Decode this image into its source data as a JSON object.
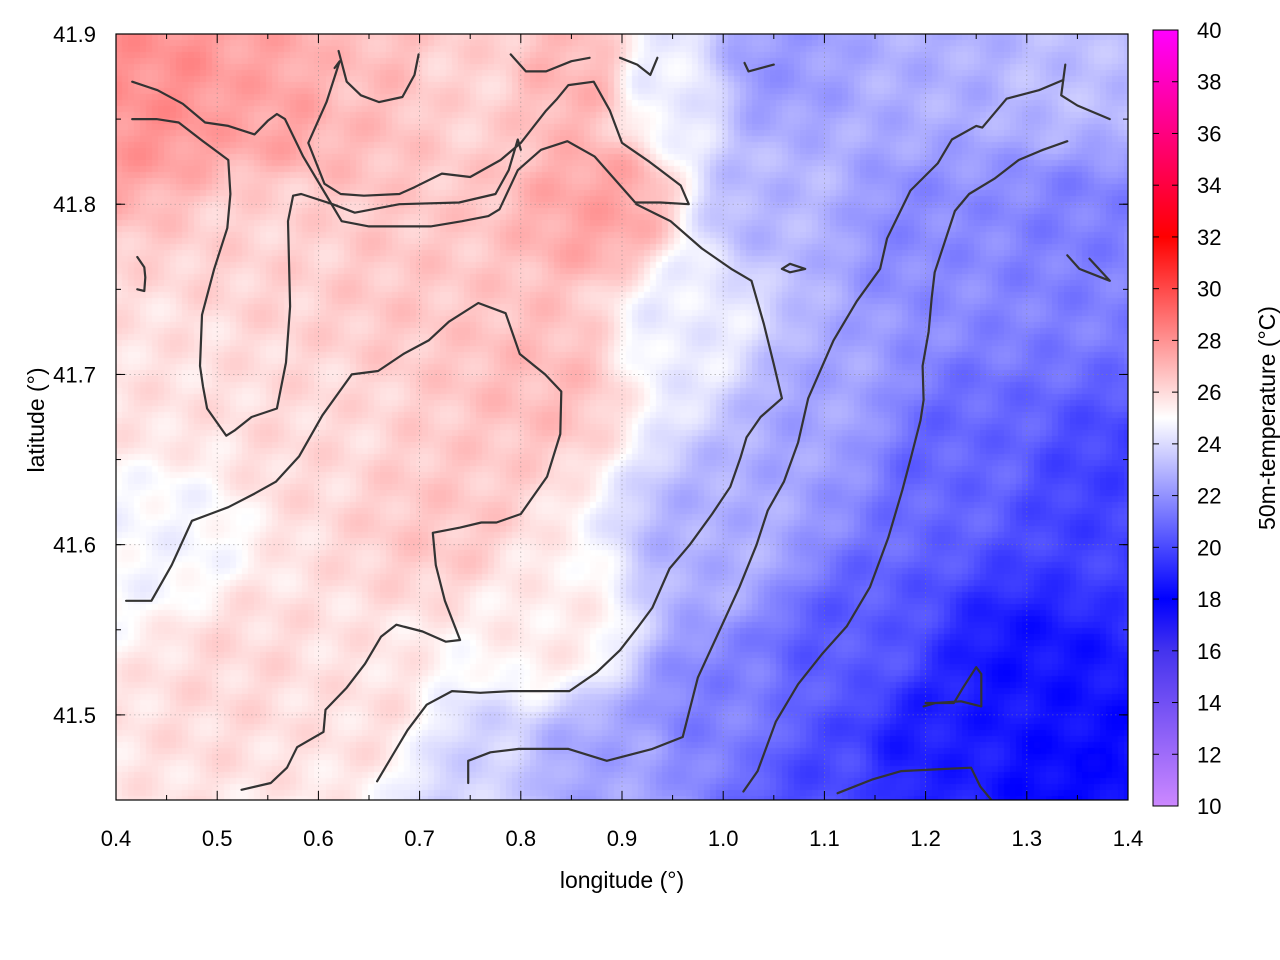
{
  "chart_data": {
    "type": "heatmap",
    "title": "",
    "xlabel": "longitude (°)",
    "ylabel": "latitude (°)",
    "colorbar_label": "50m-temperature (°C)",
    "xlim": [
      0.4,
      1.4
    ],
    "ylim": [
      41.45,
      41.9
    ],
    "x_ticks": [
      0.4,
      0.5,
      0.6,
      0.7,
      0.8,
      0.9,
      1.0,
      1.1,
      1.2,
      1.3,
      1.4
    ],
    "x_tick_labels": [
      "0.4",
      "0.5",
      "0.6",
      "0.7",
      "0.8",
      "0.9",
      "1.0",
      "1.1",
      "1.2",
      "1.3",
      "1.4"
    ],
    "y_ticks": [
      41.5,
      41.6,
      41.7,
      41.8,
      41.9
    ],
    "y_tick_labels": [
      "41.5",
      "41.6",
      "41.7",
      "41.8",
      "41.9"
    ],
    "colorbar_range": [
      10,
      40
    ],
    "colorbar_ticks": [
      10,
      12,
      14,
      16,
      18,
      20,
      22,
      24,
      26,
      28,
      30,
      32,
      34,
      36,
      38,
      40
    ],
    "colorbar_tick_labels": [
      "10",
      "12",
      "14",
      "16",
      "18",
      "20",
      "22",
      "24",
      "26",
      "28",
      "30",
      "32",
      "34",
      "36",
      "38",
      "40"
    ],
    "colorbar_stops": [
      {
        "value": 10,
        "color": "#cc88ff"
      },
      {
        "value": 16,
        "color": "#4433ee"
      },
      {
        "value": 18,
        "color": "#0000ff"
      },
      {
        "value": 25,
        "color": "#ffffff"
      },
      {
        "value": 32,
        "color": "#ff0000"
      },
      {
        "value": 40,
        "color": "#ff00ff"
      }
    ],
    "grid": true,
    "field_anchors": [
      {
        "x": 0.45,
        "y": 41.87,
        "value": 28.0
      },
      {
        "x": 0.55,
        "y": 41.86,
        "value": 27.5
      },
      {
        "x": 0.65,
        "y": 41.87,
        "value": 26.8
      },
      {
        "x": 0.75,
        "y": 41.87,
        "value": 26.2
      },
      {
        "x": 0.85,
        "y": 41.87,
        "value": 27.0
      },
      {
        "x": 0.95,
        "y": 41.87,
        "value": 24.5
      },
      {
        "x": 1.05,
        "y": 41.88,
        "value": 22.2
      },
      {
        "x": 1.2,
        "y": 41.88,
        "value": 22.8
      },
      {
        "x": 1.35,
        "y": 41.88,
        "value": 23.2
      },
      {
        "x": 0.88,
        "y": 41.8,
        "value": 27.5
      },
      {
        "x": 0.55,
        "y": 41.78,
        "value": 26.2
      },
      {
        "x": 0.7,
        "y": 41.75,
        "value": 26.5
      },
      {
        "x": 0.82,
        "y": 41.7,
        "value": 26.8
      },
      {
        "x": 0.45,
        "y": 41.7,
        "value": 25.8
      },
      {
        "x": 0.6,
        "y": 41.66,
        "value": 26.0
      },
      {
        "x": 0.72,
        "y": 41.62,
        "value": 26.5
      },
      {
        "x": 0.45,
        "y": 41.6,
        "value": 24.8
      },
      {
        "x": 0.52,
        "y": 41.53,
        "value": 26.0
      },
      {
        "x": 0.65,
        "y": 41.5,
        "value": 25.8
      },
      {
        "x": 0.83,
        "y": 41.55,
        "value": 25.5
      },
      {
        "x": 0.75,
        "y": 41.47,
        "value": 23.8
      },
      {
        "x": 0.88,
        "y": 41.47,
        "value": 22.5
      },
      {
        "x": 0.97,
        "y": 41.73,
        "value": 24.5
      },
      {
        "x": 1.05,
        "y": 41.8,
        "value": 23.0
      },
      {
        "x": 1.1,
        "y": 41.68,
        "value": 22.5
      },
      {
        "x": 1.0,
        "y": 41.6,
        "value": 22.8
      },
      {
        "x": 1.2,
        "y": 41.78,
        "value": 21.8
      },
      {
        "x": 1.35,
        "y": 41.78,
        "value": 21.5
      },
      {
        "x": 1.22,
        "y": 41.65,
        "value": 20.8
      },
      {
        "x": 1.38,
        "y": 41.62,
        "value": 19.8
      },
      {
        "x": 1.0,
        "y": 41.5,
        "value": 21.5
      },
      {
        "x": 1.12,
        "y": 41.54,
        "value": 20.5
      },
      {
        "x": 1.2,
        "y": 41.48,
        "value": 18.8
      },
      {
        "x": 1.3,
        "y": 41.52,
        "value": 18.5
      },
      {
        "x": 1.35,
        "y": 41.46,
        "value": 18.2
      },
      {
        "x": 1.1,
        "y": 41.46,
        "value": 20.0
      }
    ],
    "contours": [
      [
        [
          0.416,
          41.872
        ],
        [
          0.441,
          41.867
        ],
        [
          0.466,
          41.859
        ],
        [
          0.488,
          41.848
        ],
        [
          0.511,
          41.846
        ],
        [
          0.537,
          41.841
        ],
        [
          0.55,
          41.849
        ],
        [
          0.559,
          41.853
        ],
        [
          0.567,
          41.85
        ],
        [
          0.585,
          41.828
        ],
        [
          0.607,
          41.806
        ],
        [
          0.623,
          41.79
        ],
        [
          0.65,
          41.787
        ],
        [
          0.685,
          41.787
        ],
        [
          0.711,
          41.787
        ],
        [
          0.742,
          41.79
        ],
        [
          0.768,
          41.793
        ],
        [
          0.779,
          41.797
        ],
        [
          0.797,
          41.82
        ],
        [
          0.82,
          41.832
        ],
        [
          0.846,
          41.837
        ],
        [
          0.873,
          41.828
        ],
        [
          0.913,
          41.801
        ],
        [
          0.938,
          41.801
        ],
        [
          0.966,
          41.8
        ],
        [
          0.958,
          41.811
        ],
        [
          0.927,
          41.825
        ],
        [
          0.9,
          41.836
        ],
        [
          0.888,
          41.855
        ],
        [
          0.872,
          41.872
        ],
        [
          0.847,
          41.87
        ],
        [
          0.836,
          41.862
        ],
        [
          0.825,
          41.855
        ],
        [
          0.8,
          41.836
        ],
        [
          0.78,
          41.826
        ],
        [
          0.75,
          41.816
        ],
        [
          0.722,
          41.818
        ],
        [
          0.695,
          41.81
        ],
        [
          0.68,
          41.806
        ],
        [
          0.645,
          41.805
        ],
        [
          0.622,
          41.806
        ],
        [
          0.606,
          41.812
        ],
        [
          0.59,
          41.836
        ],
        [
          0.608,
          41.86
        ],
        [
          0.621,
          41.884
        ],
        [
          0.616,
          41.88
        ]
      ],
      [
        [
          0.416,
          41.85
        ],
        [
          0.44,
          41.85
        ],
        [
          0.462,
          41.848
        ],
        [
          0.486,
          41.837
        ],
        [
          0.511,
          41.826
        ],
        [
          0.513,
          41.806
        ],
        [
          0.51,
          41.786
        ],
        [
          0.497,
          41.762
        ],
        [
          0.485,
          41.735
        ],
        [
          0.483,
          41.705
        ],
        [
          0.486,
          41.693
        ],
        [
          0.49,
          41.68
        ],
        [
          0.509,
          41.664
        ],
        [
          0.517,
          41.667
        ],
        [
          0.534,
          41.675
        ],
        [
          0.559,
          41.68
        ],
        [
          0.568,
          41.707
        ],
        [
          0.572,
          41.74
        ],
        [
          0.57,
          41.79
        ],
        [
          0.575,
          41.805
        ],
        [
          0.583,
          41.806
        ],
        [
          0.614,
          41.8
        ],
        [
          0.636,
          41.795
        ],
        [
          0.68,
          41.8
        ],
        [
          0.739,
          41.801
        ],
        [
          0.775,
          41.806
        ],
        [
          0.788,
          41.82
        ],
        [
          0.797,
          41.838
        ],
        [
          0.8,
          41.832
        ]
      ],
      [
        [
          0.421,
          41.769
        ],
        [
          0.428,
          41.763
        ],
        [
          0.429,
          41.757
        ],
        [
          0.428,
          41.749
        ],
        [
          0.421,
          41.75
        ]
      ],
      [
        [
          0.41,
          41.567
        ],
        [
          0.435,
          41.567
        ],
        [
          0.455,
          41.588
        ],
        [
          0.475,
          41.614
        ],
        [
          0.493,
          41.618
        ],
        [
          0.511,
          41.622
        ],
        [
          0.537,
          41.63
        ],
        [
          0.558,
          41.637
        ],
        [
          0.581,
          41.652
        ],
        [
          0.604,
          41.676
        ],
        [
          0.633,
          41.7
        ],
        [
          0.659,
          41.702
        ],
        [
          0.684,
          41.712
        ],
        [
          0.709,
          41.72
        ],
        [
          0.729,
          41.731
        ],
        [
          0.758,
          41.742
        ],
        [
          0.785,
          41.736
        ],
        [
          0.799,
          41.712
        ],
        [
          0.824,
          41.7
        ],
        [
          0.84,
          41.69
        ],
        [
          0.839,
          41.665
        ],
        [
          0.826,
          41.64
        ],
        [
          0.8,
          41.618
        ],
        [
          0.776,
          41.613
        ],
        [
          0.761,
          41.613
        ],
        [
          0.74,
          41.61
        ],
        [
          0.713,
          41.607
        ],
        [
          0.716,
          41.588
        ],
        [
          0.725,
          41.567
        ],
        [
          0.74,
          41.544
        ],
        [
          0.726,
          41.543
        ],
        [
          0.703,
          41.549
        ],
        [
          0.677,
          41.553
        ],
        [
          0.662,
          41.546
        ],
        [
          0.646,
          41.53
        ],
        [
          0.628,
          41.516
        ],
        [
          0.607,
          41.503
        ],
        [
          0.605,
          41.49
        ],
        [
          0.579,
          41.481
        ],
        [
          0.569,
          41.469
        ],
        [
          0.553,
          41.46
        ],
        [
          0.524,
          41.456
        ]
      ],
      [
        [
          0.658,
          41.461
        ],
        [
          0.674,
          41.477
        ],
        [
          0.688,
          41.491
        ],
        [
          0.707,
          41.506
        ],
        [
          0.732,
          41.514
        ],
        [
          0.76,
          41.513
        ],
        [
          0.79,
          41.514
        ],
        [
          0.822,
          41.514
        ],
        [
          0.848,
          41.514
        ],
        [
          0.875,
          41.525
        ],
        [
          0.898,
          41.538
        ],
        [
          0.915,
          41.551
        ],
        [
          0.93,
          41.563
        ],
        [
          0.947,
          41.586
        ],
        [
          0.967,
          41.6
        ],
        [
          0.989,
          41.618
        ],
        [
          1.007,
          41.634
        ],
        [
          1.017,
          41.651
        ],
        [
          1.023,
          41.663
        ],
        [
          1.037,
          41.675
        ],
        [
          1.058,
          41.686
        ],
        [
          1.05,
          41.706
        ],
        [
          1.04,
          41.73
        ],
        [
          1.028,
          41.755
        ],
        [
          1.008,
          41.762
        ],
        [
          0.979,
          41.774
        ],
        [
          0.948,
          41.79
        ],
        [
          0.914,
          41.8
        ]
      ],
      [
        [
          0.748,
          41.46
        ],
        [
          0.748,
          41.473
        ],
        [
          0.77,
          41.478
        ],
        [
          0.798,
          41.48
        ],
        [
          0.847,
          41.48
        ],
        [
          0.885,
          41.473
        ],
        [
          0.93,
          41.48
        ],
        [
          0.96,
          41.487
        ],
        [
          0.975,
          41.522
        ],
        [
          0.999,
          41.553
        ],
        [
          1.016,
          41.575
        ],
        [
          1.033,
          41.6
        ],
        [
          1.044,
          41.62
        ],
        [
          1.06,
          41.637
        ],
        [
          1.074,
          41.66
        ],
        [
          1.084,
          41.686
        ],
        [
          1.109,
          41.72
        ],
        [
          1.132,
          41.743
        ],
        [
          1.155,
          41.762
        ],
        [
          1.162,
          41.78
        ],
        [
          1.185,
          41.808
        ],
        [
          1.212,
          41.824
        ],
        [
          1.226,
          41.838
        ],
        [
          1.25,
          41.846
        ],
        [
          1.256,
          41.845
        ],
        [
          1.28,
          41.862
        ],
        [
          1.312,
          41.867
        ],
        [
          1.336,
          41.873
        ]
      ],
      [
        [
          1.02,
          41.455
        ],
        [
          1.034,
          41.467
        ],
        [
          1.052,
          41.496
        ],
        [
          1.074,
          41.518
        ],
        [
          1.098,
          41.536
        ],
        [
          1.122,
          41.552
        ],
        [
          1.145,
          41.575
        ],
        [
          1.163,
          41.604
        ],
        [
          1.177,
          41.632
        ],
        [
          1.185,
          41.65
        ],
        [
          1.195,
          41.673
        ],
        [
          1.198,
          41.685
        ],
        [
          1.197,
          41.705
        ],
        [
          1.203,
          41.725
        ],
        [
          1.206,
          41.745
        ],
        [
          1.209,
          41.76
        ],
        [
          1.219,
          41.778
        ],
        [
          1.229,
          41.796
        ],
        [
          1.243,
          41.806
        ],
        [
          1.268,
          41.815
        ],
        [
          1.292,
          41.826
        ],
        [
          1.316,
          41.832
        ],
        [
          1.34,
          41.837
        ]
      ],
      [
        [
          1.113,
          41.454
        ],
        [
          1.147,
          41.462
        ],
        [
          1.176,
          41.467
        ],
        [
          1.21,
          41.468
        ],
        [
          1.245,
          41.469
        ],
        [
          1.254,
          41.458
        ],
        [
          1.265,
          41.45
        ]
      ],
      [
        [
          1.198,
          41.505
        ],
        [
          1.21,
          41.507
        ],
        [
          1.235,
          41.508
        ],
        [
          1.255,
          41.505
        ],
        [
          1.255,
          41.524
        ],
        [
          1.25,
          41.528
        ],
        [
          1.237,
          41.516
        ],
        [
          1.228,
          41.507
        ],
        [
          1.2,
          41.507
        ]
      ],
      [
        [
          1.058,
          41.762
        ],
        [
          1.066,
          41.765
        ],
        [
          1.081,
          41.762
        ],
        [
          1.066,
          41.76
        ],
        [
          1.058,
          41.762
        ]
      ],
      [
        [
          0.62,
          41.89
        ],
        [
          0.628,
          41.872
        ],
        [
          0.642,
          41.864
        ],
        [
          0.66,
          41.86
        ],
        [
          0.683,
          41.863
        ],
        [
          0.695,
          41.876
        ],
        [
          0.699,
          41.888
        ]
      ],
      [
        [
          0.79,
          41.888
        ],
        [
          0.805,
          41.878
        ],
        [
          0.825,
          41.878
        ],
        [
          0.85,
          41.884
        ],
        [
          0.868,
          41.886
        ]
      ],
      [
        [
          0.898,
          41.886
        ],
        [
          0.915,
          41.882
        ],
        [
          0.928,
          41.876
        ],
        [
          0.935,
          41.886
        ]
      ],
      [
        [
          1.021,
          41.883
        ],
        [
          1.025,
          41.878
        ],
        [
          1.05,
          41.882
        ]
      ],
      [
        [
          1.338,
          41.882
        ],
        [
          1.334,
          41.864
        ],
        [
          1.35,
          41.858
        ],
        [
          1.382,
          41.85
        ]
      ],
      [
        [
          1.34,
          41.77
        ],
        [
          1.352,
          41.762
        ],
        [
          1.382,
          41.755
        ],
        [
          1.362,
          41.768
        ]
      ]
    ]
  }
}
